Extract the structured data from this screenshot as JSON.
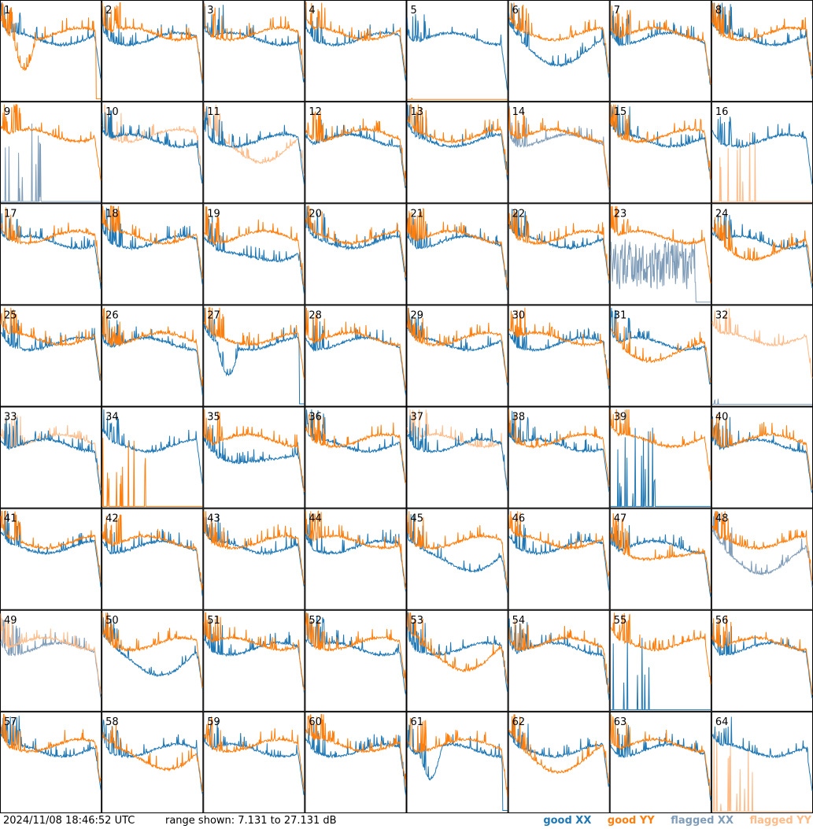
{
  "timestamp": "2024/11/08 18:46:52 UTC",
  "range_text": "range shown: 7.131 to 27.131 dB",
  "legend": {
    "good_xx": "good XX",
    "good_yy": "good YY",
    "flagged_xx": "flagged XX",
    "flagged_yy": "flagged YY"
  },
  "colors": {
    "good_xx": "#1f77b4",
    "good_yy": "#ff7f0e",
    "flagged_xx": "#7f9cb8",
    "flagged_yy": "#ffbb88"
  },
  "chart_data": {
    "type": "line",
    "layout": "8x8 small multiples",
    "ylim": [
      7.131,
      27.131
    ],
    "yunit": "dB",
    "grid": false,
    "legend_position": "bottom-right",
    "panels": [
      {
        "id": "1",
        "xx": "good",
        "yy": "good",
        "yy_shape": "dropout"
      },
      {
        "id": "2",
        "xx": "good",
        "yy": "good"
      },
      {
        "id": "3",
        "xx": "good",
        "yy": "good"
      },
      {
        "id": "4",
        "xx": "good",
        "yy": "good"
      },
      {
        "id": "5",
        "xx": "good",
        "yy": "good",
        "yy_shape": "flat_low"
      },
      {
        "id": "6",
        "xx": "good",
        "yy": "good",
        "xx_shape": "sag"
      },
      {
        "id": "7",
        "xx": "good",
        "yy": "good"
      },
      {
        "id": "8",
        "xx": "good",
        "yy": "good"
      },
      {
        "id": "9",
        "xx": "flagged",
        "yy": "good",
        "xx_shape": "spiky_low"
      },
      {
        "id": "10",
        "xx": "good",
        "yy": "flagged"
      },
      {
        "id": "11",
        "xx": "good",
        "yy": "flagged",
        "yy_shape": "sag"
      },
      {
        "id": "12",
        "xx": "good",
        "yy": "good"
      },
      {
        "id": "13",
        "xx": "good",
        "yy": "good"
      },
      {
        "id": "14",
        "xx": "flagged",
        "yy": "good"
      },
      {
        "id": "15",
        "xx": "good",
        "yy": "good"
      },
      {
        "id": "16",
        "xx": "good",
        "yy": "flagged",
        "yy_shape": "spiky_low"
      },
      {
        "id": "17",
        "xx": "good",
        "yy": "good"
      },
      {
        "id": "18",
        "xx": "good",
        "yy": "good"
      },
      {
        "id": "19",
        "xx": "good",
        "yy": "good",
        "xx_shape": "sag"
      },
      {
        "id": "20",
        "xx": "good",
        "yy": "good"
      },
      {
        "id": "21",
        "xx": "good",
        "yy": "good"
      },
      {
        "id": "22",
        "xx": "good",
        "yy": "good"
      },
      {
        "id": "23",
        "xx": "flagged",
        "yy": "good",
        "xx_shape": "noisy"
      },
      {
        "id": "24",
        "xx": "good",
        "yy": "good",
        "yy_shape": "sag"
      },
      {
        "id": "25",
        "xx": "good",
        "yy": "good"
      },
      {
        "id": "26",
        "xx": "good",
        "yy": "good"
      },
      {
        "id": "27",
        "xx": "good",
        "yy": "good",
        "xx_shape": "dropout"
      },
      {
        "id": "28",
        "xx": "good",
        "yy": "good"
      },
      {
        "id": "29",
        "xx": "good",
        "yy": "good"
      },
      {
        "id": "30",
        "xx": "good",
        "yy": "good"
      },
      {
        "id": "31",
        "xx": "good",
        "yy": "good",
        "yy_shape": "sag"
      },
      {
        "id": "32",
        "xx": "flagged",
        "yy": "flagged",
        "xx_shape": "flat_low"
      },
      {
        "id": "33",
        "xx": "good",
        "yy": "flagged"
      },
      {
        "id": "34",
        "xx": "good",
        "yy": "good",
        "yy_shape": "spiky_low"
      },
      {
        "id": "35",
        "xx": "good",
        "yy": "good",
        "xx_shape": "sag"
      },
      {
        "id": "36",
        "xx": "good",
        "yy": "good"
      },
      {
        "id": "37",
        "xx": "good",
        "yy": "flagged"
      },
      {
        "id": "38",
        "xx": "good",
        "yy": "good"
      },
      {
        "id": "39",
        "xx": "good",
        "yy": "good",
        "xx_shape": "spiky_low"
      },
      {
        "id": "40",
        "xx": "good",
        "yy": "good"
      },
      {
        "id": "41",
        "xx": "good",
        "yy": "good"
      },
      {
        "id": "42",
        "xx": "good",
        "yy": "good"
      },
      {
        "id": "43",
        "xx": "good",
        "yy": "good"
      },
      {
        "id": "44",
        "xx": "good",
        "yy": "good"
      },
      {
        "id": "45",
        "xx": "good",
        "yy": "good",
        "xx_shape": "sag"
      },
      {
        "id": "46",
        "xx": "good",
        "yy": "good"
      },
      {
        "id": "47",
        "xx": "good",
        "yy": "good",
        "yy_shape": "sag"
      },
      {
        "id": "48",
        "xx": "flagged",
        "yy": "good",
        "xx_shape": "sag"
      },
      {
        "id": "49",
        "xx": "flagged",
        "yy": "flagged"
      },
      {
        "id": "50",
        "xx": "good",
        "yy": "good",
        "xx_shape": "sag"
      },
      {
        "id": "51",
        "xx": "good",
        "yy": "good"
      },
      {
        "id": "52",
        "xx": "good",
        "yy": "good"
      },
      {
        "id": "53",
        "xx": "good",
        "yy": "good",
        "yy_shape": "sag"
      },
      {
        "id": "54",
        "xx": "good",
        "yy": "good"
      },
      {
        "id": "55",
        "xx": "good",
        "yy": "good",
        "xx_shape": "spiky_low"
      },
      {
        "id": "56",
        "xx": "good",
        "yy": "good"
      },
      {
        "id": "57",
        "xx": "good",
        "yy": "good"
      },
      {
        "id": "58",
        "xx": "good",
        "yy": "good",
        "yy_shape": "sag"
      },
      {
        "id": "59",
        "xx": "good",
        "yy": "good"
      },
      {
        "id": "60",
        "xx": "good",
        "yy": "good"
      },
      {
        "id": "61",
        "xx": "good",
        "yy": "good",
        "xx_shape": "dropout"
      },
      {
        "id": "62",
        "xx": "good",
        "yy": "good",
        "yy_shape": "sag"
      },
      {
        "id": "63",
        "xx": "good",
        "yy": "good"
      },
      {
        "id": "64",
        "xx": "good",
        "yy": "flagged",
        "yy_shape": "spiky_low"
      }
    ]
  }
}
